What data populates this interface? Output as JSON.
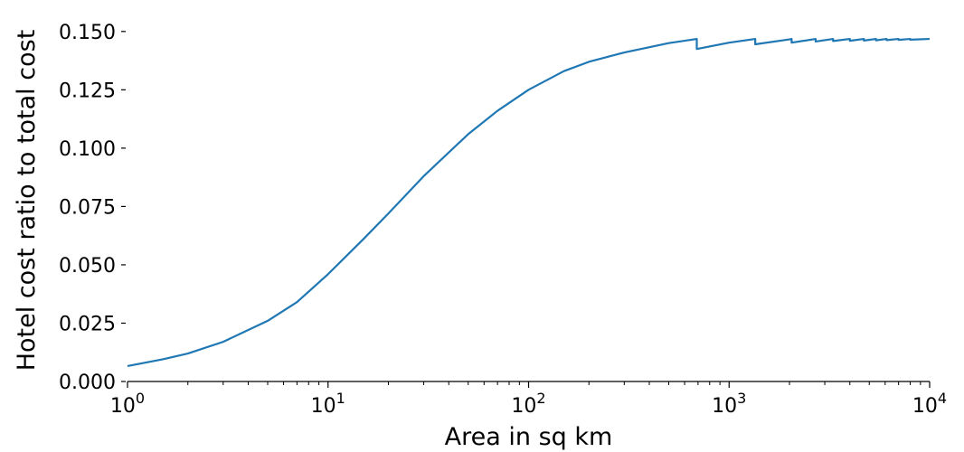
{
  "chart_data": {
    "type": "line",
    "title": "",
    "xlabel": "Area in sq km",
    "ylabel": "Hotel cost ratio to total cost",
    "xscale": "log",
    "xlim": [
      1,
      10000
    ],
    "ylim": [
      0,
      0.16
    ],
    "grid": false,
    "line_color": "#1f77b4",
    "x_ticks": [
      {
        "value": 1,
        "base": "10",
        "exp": "0"
      },
      {
        "value": 10,
        "base": "10",
        "exp": "1"
      },
      {
        "value": 100,
        "base": "10",
        "exp": "2"
      },
      {
        "value": 1000,
        "base": "10",
        "exp": "3"
      },
      {
        "value": 10000,
        "base": "10",
        "exp": "4"
      }
    ],
    "y_ticks": [
      {
        "value": 0.0,
        "label": "0.000"
      },
      {
        "value": 0.025,
        "label": "0.025"
      },
      {
        "value": 0.05,
        "label": "0.050"
      },
      {
        "value": 0.075,
        "label": "0.075"
      },
      {
        "value": 0.1,
        "label": "0.100"
      },
      {
        "value": 0.125,
        "label": "0.125"
      },
      {
        "value": 0.15,
        "label": "0.150"
      }
    ],
    "series": [
      {
        "x": [
          1,
          1.5,
          2,
          3,
          5,
          7,
          10,
          15,
          20,
          30,
          50,
          70,
          100,
          150,
          200,
          300,
          500,
          690,
          690,
          1000,
          1350,
          1350,
          2000,
          2050,
          2050,
          2700,
          2700,
          3300,
          3300,
          4000,
          4000,
          4700,
          4700,
          5400,
          5400,
          6100,
          6100,
          7000,
          7000,
          8000,
          8000,
          10000
        ],
        "y": [
          0.0066,
          0.0095,
          0.012,
          0.017,
          0.026,
          0.034,
          0.046,
          0.061,
          0.072,
          0.088,
          0.106,
          0.116,
          0.125,
          0.133,
          0.137,
          0.141,
          0.145,
          0.1468,
          0.1425,
          0.1452,
          0.1468,
          0.1445,
          0.1466,
          0.1468,
          0.1452,
          0.1468,
          0.1457,
          0.1468,
          0.1459,
          0.1468,
          0.146,
          0.1468,
          0.1461,
          0.1468,
          0.1462,
          0.1468,
          0.1463,
          0.1468,
          0.1464,
          0.1468,
          0.1465,
          0.1468
        ]
      }
    ]
  }
}
